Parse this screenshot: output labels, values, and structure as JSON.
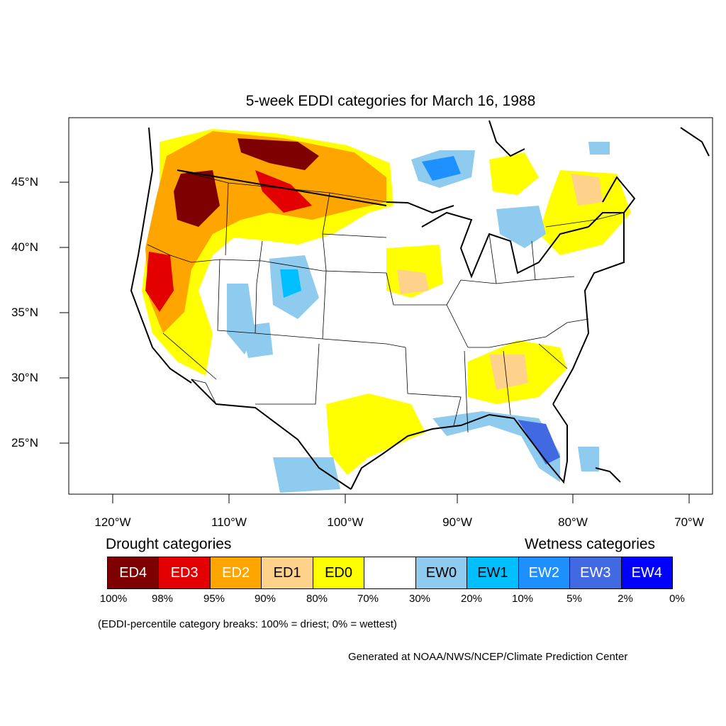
{
  "title": "5-week EDDI categories for March 16, 1988",
  "axes": {
    "lat_labels": [
      "45°N",
      "40°N",
      "35°N",
      "30°N",
      "25°N"
    ],
    "lon_labels": [
      "120°W",
      "110°W",
      "100°W",
      "90°W",
      "80°W",
      "70°W"
    ]
  },
  "legend": {
    "drought_heading": "Drought categories",
    "wetness_heading": "Wetness categories",
    "categories": [
      {
        "label": "ED4",
        "color": "#7f0000",
        "text_color": "#ffffff"
      },
      {
        "label": "ED3",
        "color": "#e30000",
        "text_color": "#ffffff"
      },
      {
        "label": "ED2",
        "color": "#ffa500",
        "text_color": "#ffffff"
      },
      {
        "label": "ED1",
        "color": "#ffd28c",
        "text_color": "#000000"
      },
      {
        "label": "ED0",
        "color": "#ffff00",
        "text_color": "#000000"
      },
      {
        "label": "",
        "color": "#ffffff",
        "text_color": "#000000"
      },
      {
        "label": "EW0",
        "color": "#8ecbee",
        "text_color": "#000000"
      },
      {
        "label": "EW1",
        "color": "#00bfff",
        "text_color": "#000000"
      },
      {
        "label": "EW2",
        "color": "#1e90ff",
        "text_color": "#ffffff"
      },
      {
        "label": "EW3",
        "color": "#4169e1",
        "text_color": "#ffffff"
      },
      {
        "label": "EW4",
        "color": "#0000ff",
        "text_color": "#ffffff"
      }
    ],
    "breaks": [
      "100%",
      "98%",
      "95%",
      "90%",
      "80%",
      "70%",
      "30%",
      "20%",
      "10%",
      "5%",
      "2%",
      "0%"
    ]
  },
  "note": "(EDDI-percentile category breaks: 100% = driest; 0% = wettest)",
  "credit": "Generated at NOAA/NWS/NCEP/Climate Prediction Center"
}
